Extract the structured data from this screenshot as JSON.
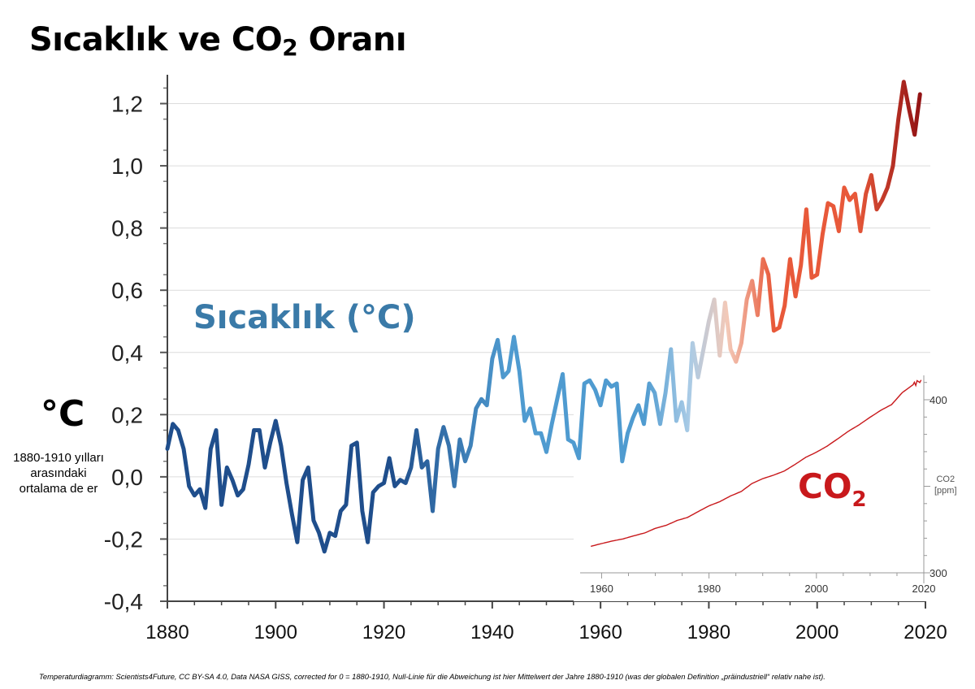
{
  "title": {
    "main": "Sıcaklık ve CO",
    "sub": "2",
    "rest": " Oranı"
  },
  "y_axis": {
    "unit": "°C",
    "description": "1880-1910 yılları arasındaki ortalama de er"
  },
  "series_label": "Sıcaklık (°C)",
  "co2_label": {
    "main": "CO",
    "sub": "2"
  },
  "co2_axis_label": {
    "line1": "CO2",
    "line2": "[ppm]"
  },
  "caption": "Temperaturdiagramm: Scientists4Future, CC BY-SA 4.0, Data NASA GISS, corrected for 0 = 1880-1910, Null-Linie für die Abweichung ist hier Mittelwert der Jahre 1880-1910 (was der globalen Definition „präindustriell“ relativ nahe ist).",
  "colors": {
    "cold": "#1f4e8c",
    "mid_blue": "#4f9bd0",
    "light_blue": "#a9cbe6",
    "pale": "#f3c9b8",
    "orange": "#e8593a",
    "dark_red": "#8e0f12",
    "co2_line": "#c8191c"
  },
  "chart_data": [
    {
      "type": "line",
      "title": "",
      "xlabel": "",
      "ylabel": "°C",
      "xlim": [
        1880,
        2020
      ],
      "ylim": [
        -0.4,
        1.3
      ],
      "x_ticks": [
        1880,
        1900,
        1920,
        1940,
        1960,
        1980,
        2000,
        2020
      ],
      "y_ticks": [
        -0.4,
        -0.2,
        0.0,
        0.2,
        0.4,
        0.6,
        0.8,
        1.0,
        1.2
      ],
      "x_tick_labels": [
        "1880",
        "1900",
        "1920",
        "1940",
        "1960",
        "1980",
        "2000",
        "2020"
      ],
      "y_tick_labels": [
        "-0,4",
        "-0,2",
        "0,0",
        "0,2",
        "0,4",
        "0,6",
        "0,8",
        "1,0",
        "1,2"
      ],
      "grid": "horizontal",
      "series": [
        {
          "name": "Sıcaklık (°C)",
          "x": [
            1880,
            1881,
            1882,
            1883,
            1884,
            1885,
            1886,
            1887,
            1888,
            1889,
            1890,
            1891,
            1892,
            1893,
            1894,
            1895,
            1896,
            1897,
            1898,
            1899,
            1900,
            1901,
            1902,
            1903,
            1904,
            1905,
            1906,
            1907,
            1908,
            1909,
            1910,
            1911,
            1912,
            1913,
            1914,
            1915,
            1916,
            1917,
            1918,
            1919,
            1920,
            1921,
            1922,
            1923,
            1924,
            1925,
            1926,
            1927,
            1928,
            1929,
            1930,
            1931,
            1932,
            1933,
            1934,
            1935,
            1936,
            1937,
            1938,
            1939,
            1940,
            1941,
            1942,
            1943,
            1944,
            1945,
            1946,
            1947,
            1948,
            1949,
            1950,
            1951,
            1952,
            1953,
            1954,
            1955,
            1956,
            1957,
            1958,
            1959,
            1960,
            1961,
            1962,
            1963,
            1964,
            1965,
            1966,
            1967,
            1968,
            1969,
            1970,
            1971,
            1972,
            1973,
            1974,
            1975,
            1976,
            1977,
            1978,
            1979,
            1980,
            1981,
            1982,
            1983,
            1984,
            1985,
            1986,
            1987,
            1988,
            1989,
            1990,
            1991,
            1992,
            1993,
            1994,
            1995,
            1996,
            1997,
            1998,
            1999,
            2000,
            2001,
            2002,
            2003,
            2004,
            2005,
            2006,
            2007,
            2008,
            2009,
            2010,
            2011,
            2012,
            2013,
            2014,
            2015,
            2016,
            2017,
            2018,
            2019
          ],
          "values": [
            0.09,
            0.17,
            0.15,
            0.09,
            -0.03,
            -0.06,
            -0.04,
            -0.1,
            0.09,
            0.15,
            -0.09,
            0.03,
            -0.01,
            -0.06,
            -0.04,
            0.04,
            0.15,
            0.15,
            0.03,
            0.11,
            0.18,
            0.1,
            -0.02,
            -0.12,
            -0.21,
            -0.01,
            0.03,
            -0.14,
            -0.18,
            -0.24,
            -0.18,
            -0.19,
            -0.11,
            -0.09,
            0.1,
            0.11,
            -0.11,
            -0.21,
            -0.05,
            -0.03,
            -0.02,
            0.06,
            -0.03,
            -0.01,
            -0.02,
            0.03,
            0.15,
            0.03,
            0.05,
            -0.11,
            0.09,
            0.16,
            0.1,
            -0.03,
            0.12,
            0.05,
            0.1,
            0.22,
            0.25,
            0.23,
            0.38,
            0.44,
            0.32,
            0.34,
            0.45,
            0.34,
            0.18,
            0.22,
            0.14,
            0.14,
            0.08,
            0.17,
            0.25,
            0.33,
            0.12,
            0.11,
            0.06,
            0.3,
            0.31,
            0.28,
            0.23,
            0.31,
            0.29,
            0.3,
            0.05,
            0.14,
            0.19,
            0.23,
            0.17,
            0.3,
            0.27,
            0.17,
            0.27,
            0.41,
            0.18,
            0.24,
            0.15,
            0.43,
            0.32,
            0.41,
            0.5,
            0.57,
            0.39,
            0.56,
            0.41,
            0.37,
            0.43,
            0.57,
            0.63,
            0.52,
            0.7,
            0.65,
            0.47,
            0.48,
            0.55,
            0.7,
            0.58,
            0.68,
            0.86,
            0.64,
            0.65,
            0.78,
            0.88,
            0.87,
            0.79,
            0.93,
            0.89,
            0.91,
            0.79,
            0.91,
            0.97,
            0.86,
            0.89,
            0.93,
            1.0,
            1.15,
            1.27,
            1.18,
            1.1,
            1.23
          ]
        }
      ]
    },
    {
      "type": "line",
      "title": "",
      "xlabel": "",
      "ylabel": "CO2 [ppm]",
      "xlim": [
        1956,
        2020
      ],
      "ylim": [
        300,
        420
      ],
      "x_ticks": [
        1960,
        1980,
        2000,
        2020
      ],
      "y_ticks": [
        300,
        400
      ],
      "x_tick_labels": [
        "1960",
        "1980",
        "2000",
        "2020"
      ],
      "y_tick_labels": [
        "300",
        "400"
      ],
      "series": [
        {
          "name": "CO2",
          "x": [
            1958,
            1960,
            1962,
            1964,
            1966,
            1968,
            1970,
            1972,
            1974,
            1976,
            1978,
            1980,
            1982,
            1984,
            1986,
            1988,
            1990,
            1992,
            1994,
            1996,
            1998,
            2000,
            2002,
            2004,
            2006,
            2008,
            2010,
            2012,
            2014,
            2016,
            2018,
            2019.5
          ],
          "values": [
            315.3,
            316.9,
            318.4,
            319.6,
            321.4,
            323.0,
            325.7,
            327.4,
            330.2,
            332.0,
            335.4,
            338.7,
            341.1,
            344.4,
            347.0,
            351.6,
            354.4,
            356.4,
            358.8,
            362.6,
            366.7,
            369.7,
            373.2,
            377.5,
            381.9,
            385.6,
            389.9,
            393.9,
            397.2,
            404.2,
            408.7,
            411.4
          ]
        }
      ]
    }
  ]
}
